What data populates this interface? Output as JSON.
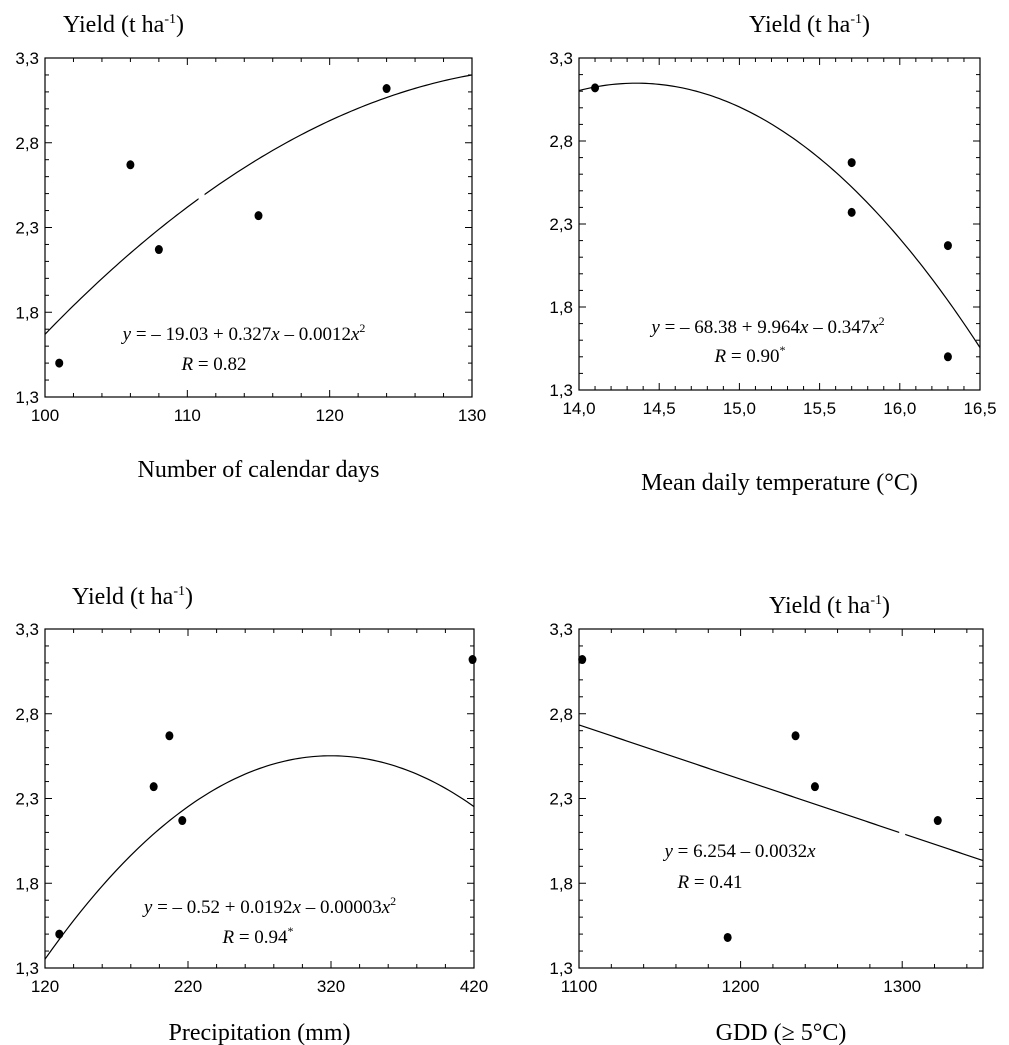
{
  "chart_data": [
    {
      "type": "scatter",
      "ylabel_base": "Yield (t ha",
      "ylabel_sup": "-1",
      "ylabel_close": ")",
      "xlabel": "Number of calendar days",
      "xlim": [
        100,
        130
      ],
      "ylim": [
        1.3,
        3.3
      ],
      "x_ticks": [
        100,
        110,
        120,
        130
      ],
      "x_tick_labels": [
        "100",
        "110",
        "120",
        "130"
      ],
      "y_ticks": [
        1.3,
        1.8,
        2.3,
        2.8,
        3.3
      ],
      "y_tick_labels": [
        "1,3",
        "1,8",
        "2,3",
        "2,8",
        "3,3"
      ],
      "points": [
        {
          "x": 101,
          "y": 1.5
        },
        {
          "x": 106,
          "y": 2.67
        },
        {
          "x": 108,
          "y": 2.17
        },
        {
          "x": 115,
          "y": 2.37
        },
        {
          "x": 124,
          "y": 3.12
        }
      ],
      "fit": {
        "type": "quadratic",
        "coef": [
          -19.03,
          0.327,
          -0.0012
        ],
        "range": [
          100,
          130
        ]
      },
      "equation": {
        "p1": "y",
        "p2": " = – 19.03 + 0.327",
        "p3": "x",
        "p4": " – 0.0012",
        "p5": "x",
        "p6": "2"
      },
      "r_text": {
        "p1": "R",
        "p2": " = 0.82",
        "sup": ""
      }
    },
    {
      "type": "scatter",
      "ylabel_base": "Yield (t ha",
      "ylabel_sup": "-1",
      "ylabel_close": ")",
      "xlabel": "Mean daily temperature (°C)",
      "xlim": [
        14.0,
        16.5
      ],
      "ylim": [
        1.3,
        3.3
      ],
      "x_ticks": [
        14.0,
        14.5,
        15.0,
        15.5,
        16.0,
        16.5
      ],
      "x_tick_labels": [
        "14,0",
        "14,5",
        "15,0",
        "15,5",
        "16,0",
        "16,5"
      ],
      "y_ticks": [
        1.3,
        1.8,
        2.3,
        2.8,
        3.3
      ],
      "y_tick_labels": [
        "1,3",
        "1,8",
        "2,3",
        "2,8",
        "3,3"
      ],
      "points": [
        {
          "x": 14.1,
          "y": 3.12
        },
        {
          "x": 15.7,
          "y": 2.67
        },
        {
          "x": 15.7,
          "y": 2.37
        },
        {
          "x": 16.3,
          "y": 2.17
        },
        {
          "x": 16.3,
          "y": 1.5
        }
      ],
      "fit": {
        "type": "quadratic",
        "coef": [
          -68.38,
          9.964,
          -0.347
        ],
        "range": [
          14.0,
          16.5
        ]
      },
      "equation": {
        "p1": "y",
        "p2": " = – 68.38 + 9.964",
        "p3": "x",
        "p4": " – 0.347",
        "p5": "x",
        "p6": "2"
      },
      "r_text": {
        "p1": "R",
        "p2": " = 0.90",
        "sup": "*"
      }
    },
    {
      "type": "scatter",
      "ylabel_base": "Yield (t ha",
      "ylabel_sup": "-1",
      "ylabel_close": ")",
      "xlabel": "Precipitation (mm)",
      "xlim": [
        120,
        420
      ],
      "ylim": [
        1.3,
        3.3
      ],
      "x_ticks": [
        120,
        220,
        320,
        420
      ],
      "x_tick_labels": [
        "120",
        "220",
        "320",
        "420"
      ],
      "y_ticks": [
        1.3,
        1.8,
        2.3,
        2.8,
        3.3
      ],
      "y_tick_labels": [
        "1,3",
        "1,8",
        "2,3",
        "2,8",
        "3,3"
      ],
      "points": [
        {
          "x": 130,
          "y": 1.5
        },
        {
          "x": 196,
          "y": 2.37
        },
        {
          "x": 207,
          "y": 2.67
        },
        {
          "x": 216,
          "y": 2.17
        },
        {
          "x": 419,
          "y": 3.12
        }
      ],
      "fit": {
        "type": "quadratic",
        "coef": [
          -0.52,
          0.0192,
          -3e-05
        ],
        "range": [
          120,
          420
        ]
      },
      "equation": {
        "p1": "y",
        "p2": " = – 0.52 + 0.0192",
        "p3": "x",
        "p4": " – 0.00003",
        "p5": "x",
        "p6": "2"
      },
      "r_text": {
        "p1": "R",
        "p2": " = 0.94",
        "sup": "*"
      }
    },
    {
      "type": "scatter",
      "ylabel_base": "Yield (t ha",
      "ylabel_sup": "-1",
      "ylabel_close": ")",
      "xlabel": "GDD (≥ 5°C)",
      "xlim": [
        1100,
        1350
      ],
      "ylim": [
        1.3,
        3.3
      ],
      "x_ticks": [
        1100,
        1200,
        1300
      ],
      "x_tick_labels": [
        "1100",
        "1200",
        "1300"
      ],
      "y_ticks": [
        1.3,
        1.8,
        2.3,
        2.8,
        3.3
      ],
      "y_tick_labels": [
        "1,3",
        "1,8",
        "2,3",
        "2,8",
        "3,3"
      ],
      "points": [
        {
          "x": 1102,
          "y": 3.12
        },
        {
          "x": 1192,
          "y": 1.48
        },
        {
          "x": 1234,
          "y": 2.67
        },
        {
          "x": 1246,
          "y": 2.37
        },
        {
          "x": 1322,
          "y": 2.17
        }
      ],
      "fit": {
        "type": "linear",
        "coef": [
          6.254,
          -0.0032
        ],
        "range": [
          1100,
          1350
        ]
      },
      "equation": {
        "p1": "y",
        "p2": " = 6.254 – 0.0032",
        "p3": "x",
        "p4": "",
        "p5": "",
        "p6": ""
      },
      "r_text": {
        "p1": "R",
        "p2": " = 0.41",
        "sup": ""
      }
    }
  ]
}
